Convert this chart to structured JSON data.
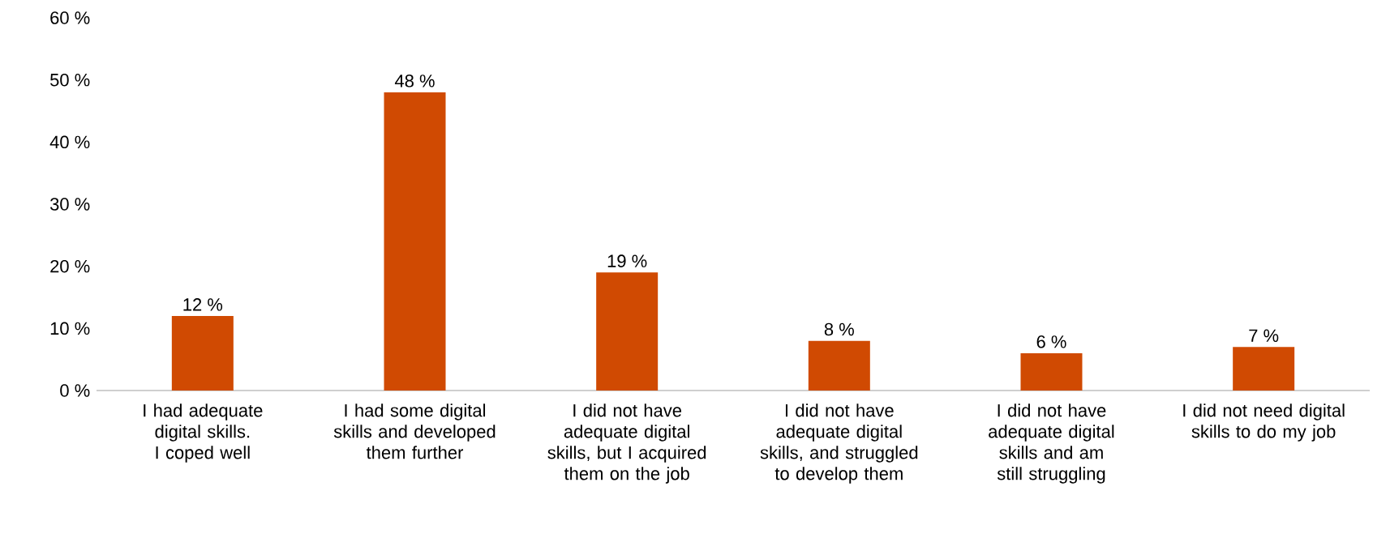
{
  "chart_data": {
    "type": "bar",
    "categories": [
      "I had adequate digital skills.  I coped well",
      "I had some digital skills and developed them further",
      "I did not have adequate digital skills, but I acquired them on the job",
      "I did not have adequate digital skills, and struggled to develop them",
      "I did not have adequate digital skills and am still struggling",
      "I did not need digital skills to do my job"
    ],
    "values": [
      12,
      48,
      19,
      8,
      6,
      7
    ],
    "value_labels": [
      "12 %",
      "48 %",
      "19 %",
      "8 %",
      "6 %",
      "7 %"
    ],
    "color": "#d04a02",
    "ylim": [
      0,
      60
    ],
    "yticks": [
      {
        "value": 0,
        "label": "0 %"
      },
      {
        "value": 10,
        "label": "10 %"
      },
      {
        "value": 20,
        "label": "20 %"
      },
      {
        "value": 30,
        "label": "30 %"
      },
      {
        "value": 40,
        "label": "40 %"
      },
      {
        "value": 50,
        "label": "50 %"
      },
      {
        "value": 60,
        "label": "60 %"
      }
    ],
    "grid": false
  }
}
